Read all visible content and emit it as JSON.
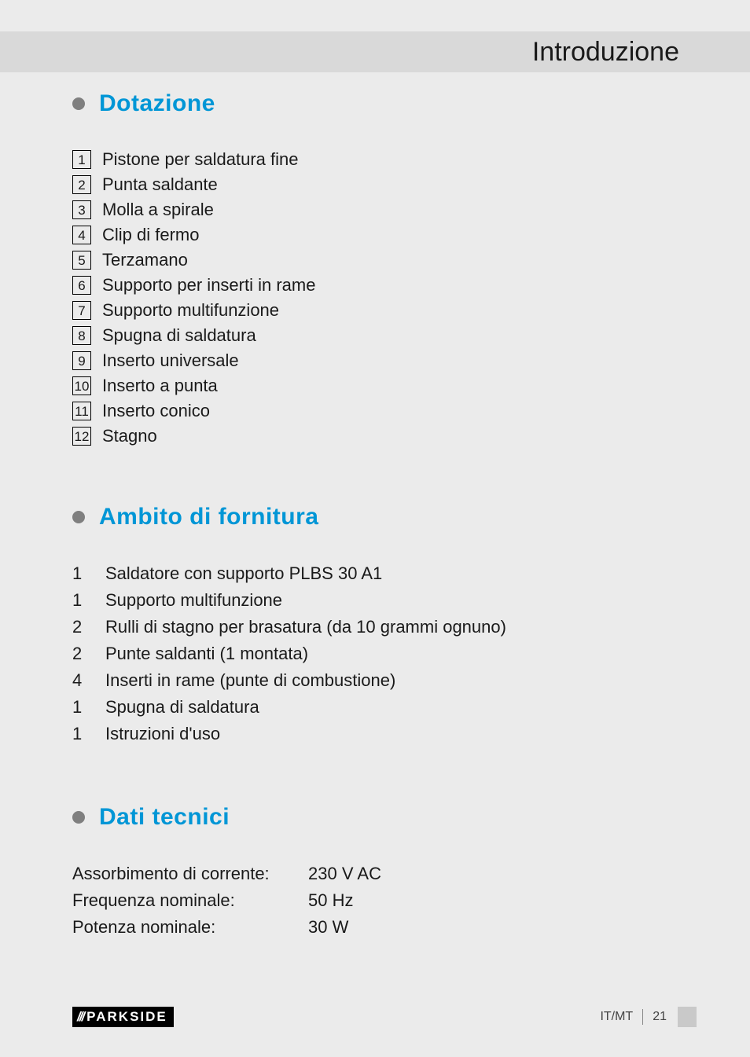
{
  "header": {
    "title": "Introduzione"
  },
  "colors": {
    "page_bg": "#ebebeb",
    "band_bg": "#d9d9d9",
    "heading": "#0096d6",
    "bullet": "#7f7f7f",
    "text": "#1a1a1a",
    "brand_bg": "#000000",
    "brand_fg": "#ffffff",
    "tab_bg": "#c9c9c9"
  },
  "sections": {
    "dotazione": {
      "title": "Dotazione",
      "items": [
        {
          "n": "1",
          "label": "Pistone per saldatura fine"
        },
        {
          "n": "2",
          "label": "Punta saldante"
        },
        {
          "n": "3",
          "label": "Molla a spirale"
        },
        {
          "n": "4",
          "label": "Clip di fermo"
        },
        {
          "n": "5",
          "label": "Terzamano"
        },
        {
          "n": "6",
          "label": "Supporto per inserti in rame"
        },
        {
          "n": "7",
          "label": "Supporto multifunzione"
        },
        {
          "n": "8",
          "label": "Spugna di saldatura"
        },
        {
          "n": "9",
          "label": "Inserto universale"
        },
        {
          "n": "10",
          "label": "Inserto a punta"
        },
        {
          "n": "11",
          "label": "Inserto conico"
        },
        {
          "n": "12",
          "label": "Stagno"
        }
      ]
    },
    "fornitura": {
      "title": "Ambito di fornitura",
      "items": [
        {
          "qty": "1",
          "label": "Saldatore con supporto PLBS 30 A1"
        },
        {
          "qty": "1",
          "label": "Supporto multifunzione"
        },
        {
          "qty": "2",
          "label": "Rulli di stagno per brasatura (da 10 grammi ognuno)"
        },
        {
          "qty": "2",
          "label": "Punte saldanti (1 montata)"
        },
        {
          "qty": "4",
          "label": "Inserti in rame (punte di combustione)"
        },
        {
          "qty": "1",
          "label": "Spugna di saldatura"
        },
        {
          "qty": "1",
          "label": "Istruzioni d'uso"
        }
      ]
    },
    "tecnici": {
      "title": "Dati tecnici",
      "rows": [
        {
          "k": "Assorbimento di corrente:",
          "v": "230 V AC"
        },
        {
          "k": "Frequenza nominale:",
          "v": "50 Hz"
        },
        {
          "k": "Potenza nominale:",
          "v": "30 W"
        }
      ]
    }
  },
  "footer": {
    "brand_stripes": "///",
    "brand": "PARKSIDE",
    "lang": "IT/MT",
    "page": "21"
  }
}
